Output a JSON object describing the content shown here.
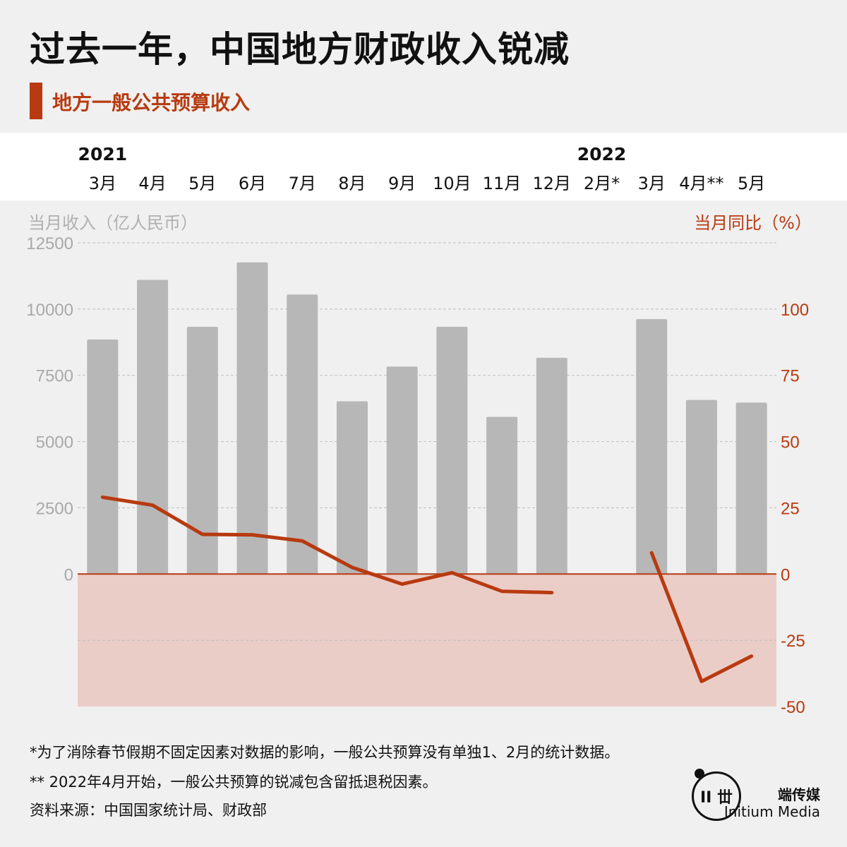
{
  "title": "过去一年，中国地方财政收入锐减",
  "subtitle": "地方一般公共预算收入",
  "colors": {
    "accent": "#b83a10",
    "bar": "#b7b7b7",
    "negative_zone": "#ebcdc8",
    "zero_line": "#b83a10"
  },
  "axis_titles": {
    "left": "当月收入（亿人民币）",
    "right": "当月同比（%）"
  },
  "years": [
    "2021",
    "2022"
  ],
  "chart_data": {
    "type": "bar+line",
    "categories": [
      "3月",
      "4月",
      "5月",
      "6月",
      "7月",
      "8月",
      "9月",
      "10月",
      "11月",
      "12月",
      "2月*",
      "3月",
      "4月**",
      "5月"
    ],
    "series": [
      {
        "axis": "left",
        "type": "bar",
        "values": [
          8850,
          11100,
          9330,
          11760,
          10550,
          6520,
          7830,
          9330,
          5930,
          8160,
          null,
          9620,
          6570,
          6470
        ]
      },
      {
        "axis": "right",
        "type": "line",
        "values": [
          29,
          26,
          15,
          14.8,
          12.5,
          2.5,
          -3.8,
          0.5,
          -6.5,
          -7,
          null,
          8,
          -40.5,
          -31
        ]
      }
    ],
    "ylim_left": [
      -5000,
      12500
    ],
    "ylim_right": [
      -50,
      125
    ],
    "yticks_left": [
      "12500",
      "10000",
      "7500",
      "5000",
      "2500",
      "0"
    ],
    "yticks_right": [
      "100",
      "75",
      "50",
      "25",
      "0",
      "-25",
      "-50"
    ],
    "grid": true
  },
  "footnotes": {
    "note1": "*为了消除春节假期不固定因素对数据的影响，一般公共预算没有单独1、2月的统计数据。",
    "note2": "** 2022年4月开始，一般公共预算的锐减包含留抵退税因素。",
    "source": "资料来源：中国国家统计局、财政部"
  },
  "brand": {
    "cn": "端传媒",
    "en": "Initium Media",
    "logo_glyph": "ΙΙ 丗"
  }
}
